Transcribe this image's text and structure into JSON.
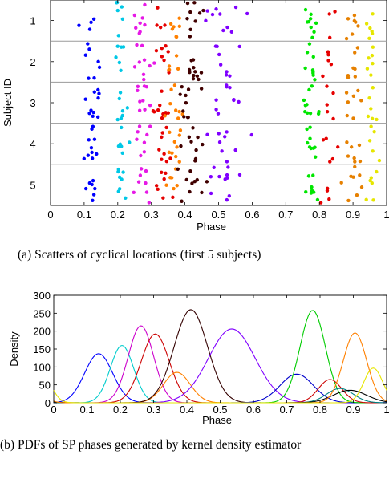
{
  "chart_data": [
    {
      "type": "scatter",
      "caption": "(a) Scatters of cyclical locations (first 5 subjects)",
      "xlabel": "Phase",
      "ylabel": "Subject ID",
      "xlim": [
        0,
        1
      ],
      "ylim": [
        0.5,
        5.5
      ],
      "y_reversed": true,
      "x_ticks": [
        "0",
        "0.1",
        "0.2",
        "0.3",
        "0.4",
        "0.5",
        "0.6",
        "0.7",
        "0.8",
        "0.9",
        "1"
      ],
      "y_ticks": [
        "1",
        "2",
        "3",
        "4",
        "5"
      ],
      "separator_lines_at": [
        1.5,
        2.5,
        3.5,
        4.5
      ],
      "grid": false,
      "clusters": [
        {
          "color": "#0000ff",
          "center": 0.12,
          "spread": 0.024,
          "counts": [
            4,
            7,
            10,
            10,
            7
          ]
        },
        {
          "color": "#00c8e6",
          "center": 0.21,
          "spread": 0.017,
          "counts": [
            6,
            6,
            7,
            6,
            8
          ]
        },
        {
          "color": "#e619e6",
          "center": 0.27,
          "spread": 0.02,
          "counts": [
            8,
            9,
            9,
            8,
            8
          ]
        },
        {
          "color": "#e60000",
          "center": 0.33,
          "spread": 0.017,
          "counts": [
            4,
            7,
            10,
            8,
            7
          ]
        },
        {
          "color": "#ff8000",
          "center": 0.37,
          "spread": 0.019,
          "counts": [
            7,
            5,
            8,
            9,
            6
          ]
        },
        {
          "color": "#400000",
          "center": 0.42,
          "spread": 0.024,
          "counts": [
            9,
            11,
            10,
            9,
            10
          ]
        },
        {
          "color": "#8000ff",
          "center": 0.53,
          "spread": 0.045,
          "counts": [
            10,
            8,
            9,
            9,
            11
          ]
        },
        {
          "color": "#00e600",
          "center": 0.775,
          "spread": 0.018,
          "counts": [
            9,
            9,
            10,
            9,
            8
          ]
        },
        {
          "color": "#e60000",
          "center": 0.835,
          "spread": 0.016,
          "counts": [
            3,
            6,
            5,
            5,
            4
          ]
        },
        {
          "color": "#e68000",
          "center": 0.9,
          "spread": 0.018,
          "counts": [
            7,
            7,
            7,
            7,
            8
          ]
        },
        {
          "color": "#e6e600",
          "center": 0.955,
          "spread": 0.011,
          "counts": [
            6,
            6,
            6,
            5,
            6
          ]
        }
      ]
    },
    {
      "type": "line",
      "caption": "(b) PDFs of SP phases generated by kernel density estimator",
      "xlabel": "Phase",
      "ylabel": "Density",
      "xlim": [
        0,
        1
      ],
      "ylim": [
        0,
        300
      ],
      "x_ticks": [
        "0",
        "0.1",
        "0.2",
        "0.3",
        "0.4",
        "0.5",
        "0.6",
        "0.7",
        "0.8",
        "0.9",
        "1"
      ],
      "y_ticks": [
        "0",
        "50",
        "100",
        "150",
        "200",
        "250",
        "300"
      ],
      "grid": false,
      "series": [
        {
          "color": "#0000ff",
          "peak_x": 0.135,
          "peak_y": 137,
          "width": 0.042
        },
        {
          "color": "#00cccc",
          "peak_x": 0.205,
          "peak_y": 160,
          "width": 0.035
        },
        {
          "color": "#cc00cc",
          "peak_x": 0.262,
          "peak_y": 215,
          "width": 0.038
        },
        {
          "color": "#cc0000",
          "peak_x": 0.305,
          "peak_y": 192,
          "width": 0.042
        },
        {
          "color": "#ff8000",
          "peak_x": 0.37,
          "peak_y": 85,
          "width": 0.04
        },
        {
          "color": "#330000",
          "peak_x": 0.412,
          "peak_y": 260,
          "width": 0.05
        },
        {
          "color": "#8000ff",
          "peak_x": 0.535,
          "peak_y": 206,
          "width": 0.07
        },
        {
          "color": "#0000cc",
          "peak_x": 0.73,
          "peak_y": 80,
          "width": 0.05
        },
        {
          "color": "#00cc00",
          "peak_x": 0.778,
          "peak_y": 258,
          "width": 0.038
        },
        {
          "color": "#cc0000",
          "peak_x": 0.83,
          "peak_y": 65,
          "width": 0.035
        },
        {
          "color": "#008080",
          "peak_x": 0.86,
          "peak_y": 40,
          "width": 0.04
        },
        {
          "color": "#000000",
          "peak_x": 0.89,
          "peak_y": 35,
          "width": 0.05
        },
        {
          "color": "#ff8000",
          "peak_x": 0.905,
          "peak_y": 195,
          "width": 0.035
        },
        {
          "color": "#e6e600",
          "peak_x": 0.96,
          "peak_y": 97,
          "width": 0.028
        }
      ]
    }
  ]
}
